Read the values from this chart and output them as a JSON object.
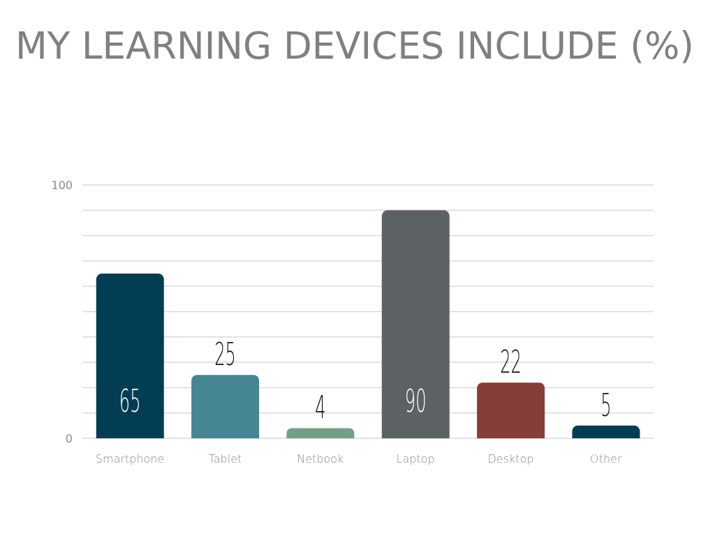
{
  "chart_data": {
    "type": "bar",
    "title": "MY LEARNING DEVICES INCLUDE (%)",
    "categories": [
      "Smartphone",
      "Tablet",
      "Netbook",
      "Laptop",
      "Desktop",
      "Other"
    ],
    "values": [
      65,
      25,
      4,
      90,
      22,
      5
    ],
    "colors": [
      "#023d54",
      "#468593",
      "#70a088",
      "#5c6163",
      "#873d38",
      "#023d54"
    ],
    "ylim": [
      0,
      100
    ],
    "yticks": [
      0,
      {
        "value": 10,
        "label": null
      },
      {
        "value": 20,
        "label": null
      },
      {
        "value": 30,
        "label": null
      },
      {
        "value": 40,
        "label": null
      },
      {
        "value": 50,
        "label": null
      },
      {
        "value": 60,
        "label": null
      },
      {
        "value": 70,
        "label": null
      },
      {
        "value": 80,
        "label": null
      },
      {
        "value": 90,
        "label": null
      },
      100
    ],
    "grid": "y",
    "data_labels": true
  }
}
